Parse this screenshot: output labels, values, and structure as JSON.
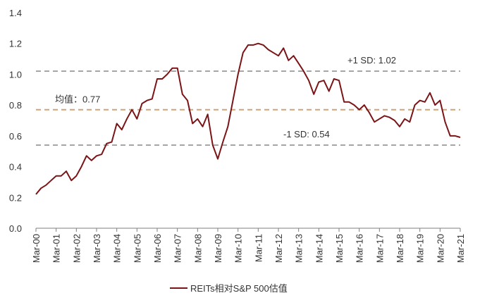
{
  "chart_data": {
    "type": "line",
    "title": "",
    "xlabel": "",
    "ylabel": "",
    "ylim": [
      0,
      1.4
    ],
    "yticks": [
      "0.0",
      "0.2",
      "0.4",
      "0.6",
      "0.8",
      "1.0",
      "1.2",
      "1.4"
    ],
    "ytick_values": [
      0,
      0.2,
      0.4,
      0.6,
      0.8,
      1.0,
      1.2,
      1.4
    ],
    "xticks": [
      "Mar-00",
      "Mar-01",
      "Mar-02",
      "Mar-03",
      "Mar-04",
      "Mar-05",
      "Mar-06",
      "Mar-07",
      "Mar-08",
      "Mar-09",
      "Mar-10",
      "Mar-11",
      "Mar-12",
      "Mar-13",
      "Mar-14",
      "Mar-15",
      "Mar-16",
      "Mar-17",
      "Mar-18",
      "Mar-19",
      "Mar-20",
      "Mar-21"
    ],
    "x_range": [
      2000.0,
      2021.0
    ],
    "grid": false,
    "legend_position": "bottom-center",
    "series": [
      {
        "name": "REITs相对S&P 500估值",
        "color": "#7b1416",
        "x": [
          2000.0,
          2000.25,
          2000.5,
          2000.75,
          2001.0,
          2001.25,
          2001.5,
          2001.75,
          2002.0,
          2002.25,
          2002.5,
          2002.75,
          2003.0,
          2003.25,
          2003.5,
          2003.75,
          2004.0,
          2004.25,
          2004.5,
          2004.75,
          2005.0,
          2005.25,
          2005.5,
          2005.75,
          2006.0,
          2006.25,
          2006.5,
          2006.75,
          2007.0,
          2007.25,
          2007.5,
          2007.75,
          2008.0,
          2008.25,
          2008.5,
          2008.75,
          2009.0,
          2009.25,
          2009.5,
          2009.75,
          2010.0,
          2010.25,
          2010.5,
          2010.75,
          2011.0,
          2011.25,
          2011.5,
          2011.75,
          2012.0,
          2012.25,
          2012.5,
          2012.75,
          2013.0,
          2013.25,
          2013.5,
          2013.75,
          2014.0,
          2014.25,
          2014.5,
          2014.75,
          2015.0,
          2015.25,
          2015.5,
          2015.75,
          2016.0,
          2016.25,
          2016.5,
          2016.75,
          2017.0,
          2017.25,
          2017.5,
          2017.75,
          2018.0,
          2018.25,
          2018.5,
          2018.75,
          2019.0,
          2019.25,
          2019.5,
          2019.75,
          2020.0,
          2020.25,
          2020.5,
          2020.75,
          2021.0
        ],
        "values": [
          0.22,
          0.26,
          0.28,
          0.31,
          0.34,
          0.34,
          0.37,
          0.31,
          0.34,
          0.4,
          0.47,
          0.44,
          0.47,
          0.48,
          0.55,
          0.56,
          0.68,
          0.64,
          0.71,
          0.77,
          0.71,
          0.81,
          0.83,
          0.84,
          0.97,
          0.97,
          1.0,
          1.04,
          1.04,
          0.87,
          0.83,
          0.68,
          0.71,
          0.66,
          0.74,
          0.54,
          0.45,
          0.56,
          0.66,
          0.83,
          1.0,
          1.14,
          1.19,
          1.19,
          1.2,
          1.19,
          1.16,
          1.14,
          1.12,
          1.17,
          1.09,
          1.12,
          1.07,
          1.02,
          0.96,
          0.87,
          0.95,
          0.96,
          0.89,
          0.97,
          0.96,
          0.82,
          0.82,
          0.8,
          0.77,
          0.8,
          0.75,
          0.69,
          0.71,
          0.73,
          0.72,
          0.7,
          0.66,
          0.71,
          0.69,
          0.8,
          0.83,
          0.82,
          0.88,
          0.8,
          0.83,
          0.69,
          0.6,
          0.6,
          0.59
        ]
      }
    ],
    "reference_lines": [
      {
        "name": "plus1sd",
        "label": "+1 SD:  1.02",
        "value": 1.02,
        "color": "#a6a6a6"
      },
      {
        "name": "mean",
        "label": "均值：0.77",
        "value": 0.77,
        "color": "#d4a373"
      },
      {
        "name": "minus1sd",
        "label": "-1 SD:  0.54",
        "value": 0.54,
        "color": "#a6a6a6"
      }
    ],
    "axis_color": "#7f7f7f",
    "text_color": "#333333"
  }
}
